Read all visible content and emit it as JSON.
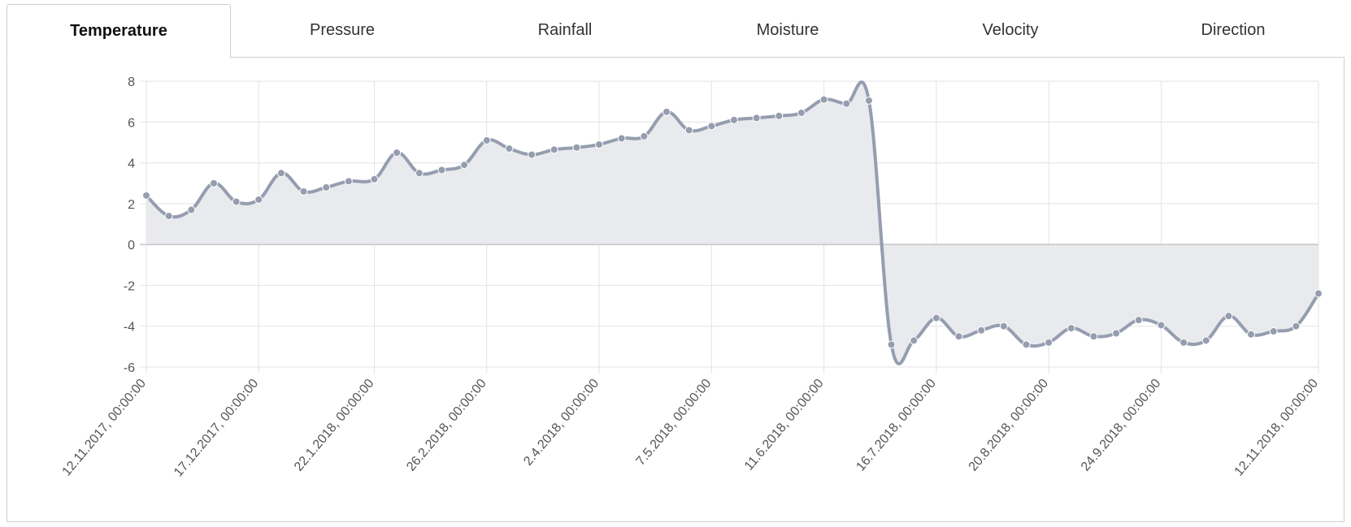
{
  "tabs": [
    {
      "label": "Temperature",
      "active": true
    },
    {
      "label": "Pressure",
      "active": false
    },
    {
      "label": "Rainfall",
      "active": false
    },
    {
      "label": "Moisture",
      "active": false
    },
    {
      "label": "Velocity",
      "active": false
    },
    {
      "label": "Direction",
      "active": false
    }
  ],
  "colors": {
    "line": "#959daf",
    "fill": "#e9eaee",
    "grid": "#e3e3e3",
    "zero_line": "#c8c8c8"
  },
  "chart_data": {
    "type": "area",
    "title": "",
    "xlabel": "",
    "ylabel": "",
    "ylim": [
      -6,
      8
    ],
    "yticks": [
      8,
      6,
      4,
      2,
      0,
      -2,
      -4,
      -6
    ],
    "x_range": [
      "12.11.2017",
      "12.11.2018"
    ],
    "xticks": [
      "12.11.2017, 00:00:00",
      "17.12.2017, 00:00:00",
      "22.1.2018, 00:00:00",
      "26.2.2018, 00:00:00",
      "2.4.2018, 00:00:00",
      "7.5.2018, 00:00:00",
      "11.6.2018, 00:00:00",
      "16.7.2018, 00:00:00",
      "20.8.2018, 00:00:00",
      "24.9.2018, 00:00:00",
      "12.11.2018, 00:00:00"
    ],
    "grid": true,
    "series": [
      {
        "points": [
          {
            "x": "12.11.2017",
            "y": 2.4
          },
          {
            "x": "19.11.2017",
            "y": 1.4
          },
          {
            "x": "26.11.2017",
            "y": 1.7
          },
          {
            "x": "3.12.2017",
            "y": 3.0
          },
          {
            "x": "10.12.2017",
            "y": 2.1
          },
          {
            "x": "17.12.2017",
            "y": 2.2
          },
          {
            "x": "24.12.2017",
            "y": 3.5
          },
          {
            "x": "31.12.2017",
            "y": 2.6
          },
          {
            "x": "7.1.2018",
            "y": 2.8
          },
          {
            "x": "14.1.2018",
            "y": 3.1
          },
          {
            "x": "22.1.2018",
            "y": 3.2
          },
          {
            "x": "29.1.2018",
            "y": 4.5
          },
          {
            "x": "5.2.2018",
            "y": 3.5
          },
          {
            "x": "12.2.2018",
            "y": 3.65
          },
          {
            "x": "19.2.2018",
            "y": 3.9
          },
          {
            "x": "26.2.2018",
            "y": 5.1
          },
          {
            "x": "5.3.2018",
            "y": 4.7
          },
          {
            "x": "12.3.2018",
            "y": 4.4
          },
          {
            "x": "19.3.2018",
            "y": 4.65
          },
          {
            "x": "26.3.2018",
            "y": 4.75
          },
          {
            "x": "2.4.2018",
            "y": 4.9
          },
          {
            "x": "9.4.2018",
            "y": 5.2
          },
          {
            "x": "16.4.2018",
            "y": 5.3
          },
          {
            "x": "23.4.2018",
            "y": 6.5
          },
          {
            "x": "30.4.2018",
            "y": 5.6
          },
          {
            "x": "7.5.2018",
            "y": 5.8
          },
          {
            "x": "14.5.2018",
            "y": 6.1
          },
          {
            "x": "21.5.2018",
            "y": 6.2
          },
          {
            "x": "28.5.2018",
            "y": 6.3
          },
          {
            "x": "4.6.2018",
            "y": 6.45
          },
          {
            "x": "11.6.2018",
            "y": 7.1
          },
          {
            "x": "18.6.2018",
            "y": 6.9
          },
          {
            "x": "25.6.2018",
            "y": 7.05
          },
          {
            "x": "2.7.2018",
            "y": -4.9
          },
          {
            "x": "9.7.2018",
            "y": -4.7
          },
          {
            "x": "16.7.2018",
            "y": -3.6
          },
          {
            "x": "23.7.2018",
            "y": -4.5
          },
          {
            "x": "30.7.2018",
            "y": -4.2
          },
          {
            "x": "6.8.2018",
            "y": -4.0
          },
          {
            "x": "13.8.2018",
            "y": -4.9
          },
          {
            "x": "20.8.2018",
            "y": -4.8
          },
          {
            "x": "27.8.2018",
            "y": -4.1
          },
          {
            "x": "3.9.2018",
            "y": -4.5
          },
          {
            "x": "10.9.2018",
            "y": -4.35
          },
          {
            "x": "17.9.2018",
            "y": -3.7
          },
          {
            "x": "24.9.2018",
            "y": -3.95
          },
          {
            "x": "1.10.2018",
            "y": -4.8
          },
          {
            "x": "8.10.2018",
            "y": -4.7
          },
          {
            "x": "15.10.2018",
            "y": -3.5
          },
          {
            "x": "22.10.2018",
            "y": -4.4
          },
          {
            "x": "29.10.2018",
            "y": -4.25
          },
          {
            "x": "5.11.2018",
            "y": -4.0
          },
          {
            "x": "12.11.2018",
            "y": -2.4
          }
        ]
      }
    ]
  }
}
